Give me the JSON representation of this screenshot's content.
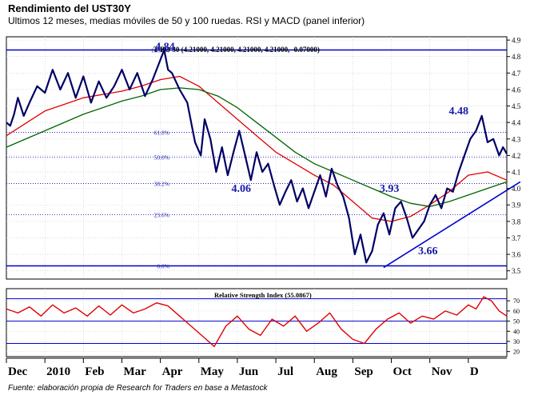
{
  "header": {
    "title": "Rendimiento del UST30Y",
    "subtitle": "Ultimos 12 meses, medias móviles de 50 y 100 ruedas. RSI y MACD (panel inferior)"
  },
  "footer": {
    "source": "Fuente: elaboración propia de Research for Traders en base a Metastock"
  },
  "colors": {
    "price": "#000066",
    "ma50": "#e00000",
    "ma100": "#006600",
    "rsi": "#e00000",
    "blue_lines": "#0000cc",
    "annotation": "#1a1aaa",
    "grid": "#c8c8c8"
  },
  "chart_data": [
    {
      "type": "line",
      "title": "T-BO 30 (4.21000, 4.21000, 4.21000, 4.21000, -0.07000)",
      "xlabel": "",
      "ylabel": "",
      "x_ticks": [
        "Dec",
        "2010",
        "Feb",
        "Mar",
        "Apr",
        "May",
        "Jun",
        "Jul",
        "Aug",
        "Sep",
        "Oct",
        "Nov",
        "D"
      ],
      "y_ticks": [
        3.5,
        3.6,
        3.7,
        3.8,
        3.9,
        4.0,
        4.1,
        4.2,
        4.3,
        4.4,
        4.5,
        4.6,
        4.7,
        4.8,
        4.9
      ],
      "ylim": [
        3.45,
        4.92
      ],
      "x_range_months": [
        0,
        13
      ],
      "grid": true,
      "fibonacci_levels": [
        {
          "label": "100.0%",
          "value": 4.84
        },
        {
          "label": "61.8%",
          "value": 4.34
        },
        {
          "label": "50.0%",
          "value": 4.19
        },
        {
          "label": "38.2%",
          "value": 4.03
        },
        {
          "label": "23.6%",
          "value": 3.84
        },
        {
          "label": "0.0%",
          "value": 3.53
        }
      ],
      "annotations": [
        {
          "text": "4.84",
          "x": 4.12,
          "y": 4.84
        },
        {
          "text": "4.06",
          "x": 6.1,
          "y": 3.98
        },
        {
          "text": "3.93",
          "x": 9.95,
          "y": 3.98
        },
        {
          "text": "3.66",
          "x": 10.95,
          "y": 3.6
        },
        {
          "text": "4.48",
          "x": 11.75,
          "y": 4.45
        }
      ],
      "trendline": {
        "x": [
          9.8,
          13.35
        ],
        "y": [
          3.52,
          4.04
        ]
      },
      "series": [
        {
          "name": "",
          "style": "price",
          "x": [
            0,
            0.1,
            0.2,
            0.3,
            0.45,
            0.6,
            0.8,
            1.0,
            1.2,
            1.4,
            1.6,
            1.8,
            2.0,
            2.2,
            2.4,
            2.6,
            2.8,
            3.0,
            3.2,
            3.4,
            3.6,
            3.8,
            4.0,
            4.1,
            4.2,
            4.3,
            4.5,
            4.7,
            4.9,
            5.05,
            5.15,
            5.3,
            5.45,
            5.6,
            5.75,
            5.9,
            6.05,
            6.2,
            6.35,
            6.5,
            6.65,
            6.8,
            6.95,
            7.1,
            7.25,
            7.4,
            7.55,
            7.7,
            7.85,
            8.0,
            8.15,
            8.3,
            8.45,
            8.6,
            8.75,
            8.9,
            9.05,
            9.2,
            9.35,
            9.5,
            9.65,
            9.8,
            9.95,
            10.1,
            10.25,
            10.4,
            10.55,
            10.7,
            10.85,
            11.0,
            11.15,
            11.3,
            11.45,
            11.6,
            11.75,
            11.9,
            12.05,
            12.2,
            12.35,
            12.5,
            12.65,
            12.8,
            12.9,
            13.0
          ],
          "y": [
            4.4,
            4.38,
            4.45,
            4.55,
            4.44,
            4.52,
            4.62,
            4.58,
            4.72,
            4.6,
            4.7,
            4.55,
            4.68,
            4.52,
            4.65,
            4.55,
            4.62,
            4.72,
            4.6,
            4.7,
            4.56,
            4.66,
            4.78,
            4.84,
            4.72,
            4.7,
            4.6,
            4.52,
            4.28,
            4.2,
            4.42,
            4.3,
            4.1,
            4.25,
            4.08,
            4.22,
            4.35,
            4.2,
            4.05,
            4.22,
            4.1,
            4.15,
            4.02,
            3.9,
            3.98,
            4.05,
            3.92,
            4.0,
            3.88,
            3.98,
            4.08,
            3.95,
            4.12,
            4.02,
            3.95,
            3.82,
            3.6,
            3.72,
            3.55,
            3.62,
            3.78,
            3.85,
            3.72,
            3.88,
            3.92,
            3.82,
            3.7,
            3.75,
            3.8,
            3.9,
            3.96,
            3.88,
            4.0,
            3.98,
            4.1,
            4.2,
            4.3,
            4.35,
            4.44,
            4.28,
            4.3,
            4.2,
            4.25,
            4.21
          ]
        },
        {
          "name": "",
          "style": "ma50",
          "x": [
            0,
            1,
            2,
            3,
            3.5,
            4,
            4.5,
            5,
            5.5,
            6,
            6.5,
            7,
            7.5,
            8,
            8.5,
            9,
            9.5,
            10,
            10.5,
            11,
            11.5,
            12,
            12.5,
            13
          ],
          "y": [
            4.32,
            4.47,
            4.55,
            4.59,
            4.62,
            4.66,
            4.68,
            4.62,
            4.52,
            4.42,
            4.32,
            4.22,
            4.15,
            4.08,
            4.02,
            3.92,
            3.82,
            3.8,
            3.83,
            3.9,
            3.98,
            4.08,
            4.1,
            4.05
          ]
        },
        {
          "name": "",
          "style": "ma100",
          "x": [
            0,
            1,
            2,
            3,
            3.5,
            4,
            4.5,
            5,
            5.5,
            6,
            6.5,
            7,
            7.5,
            8,
            8.5,
            9,
            9.5,
            10,
            10.5,
            11,
            11.5,
            12,
            12.5,
            13
          ],
          "y": [
            4.25,
            4.35,
            4.45,
            4.53,
            4.56,
            4.6,
            4.61,
            4.6,
            4.56,
            4.49,
            4.4,
            4.31,
            4.22,
            4.15,
            4.1,
            4.05,
            4.0,
            3.95,
            3.91,
            3.89,
            3.92,
            3.96,
            4.0,
            4.04
          ]
        }
      ]
    },
    {
      "type": "line",
      "title": "Relative Strength Index (55.0867)",
      "xlabel": "",
      "ylabel": "",
      "y_ticks": [
        20,
        30,
        40,
        50,
        60,
        70
      ],
      "ylim": [
        15,
        82
      ],
      "reference_lines": [
        28,
        50,
        72
      ],
      "series": [
        {
          "name": "",
          "style": "rsi",
          "x": [
            0,
            0.3,
            0.6,
            0.9,
            1.2,
            1.5,
            1.8,
            2.1,
            2.4,
            2.7,
            3.0,
            3.3,
            3.6,
            3.9,
            4.2,
            4.5,
            4.8,
            5.1,
            5.4,
            5.7,
            6.0,
            6.3,
            6.6,
            6.9,
            7.2,
            7.5,
            7.8,
            8.1,
            8.4,
            8.7,
            9.0,
            9.3,
            9.6,
            9.9,
            10.2,
            10.5,
            10.8,
            11.1,
            11.4,
            11.7,
            12.0,
            12.2,
            12.4,
            12.6,
            12.8,
            13.0
          ],
          "y": [
            62,
            58,
            64,
            55,
            66,
            58,
            63,
            55,
            65,
            56,
            66,
            58,
            62,
            68,
            65,
            55,
            45,
            35,
            25,
            45,
            55,
            42,
            36,
            52,
            45,
            55,
            40,
            48,
            58,
            42,
            32,
            28,
            42,
            52,
            58,
            48,
            55,
            52,
            60,
            56,
            66,
            62,
            74,
            70,
            60,
            55
          ]
        }
      ]
    }
  ]
}
